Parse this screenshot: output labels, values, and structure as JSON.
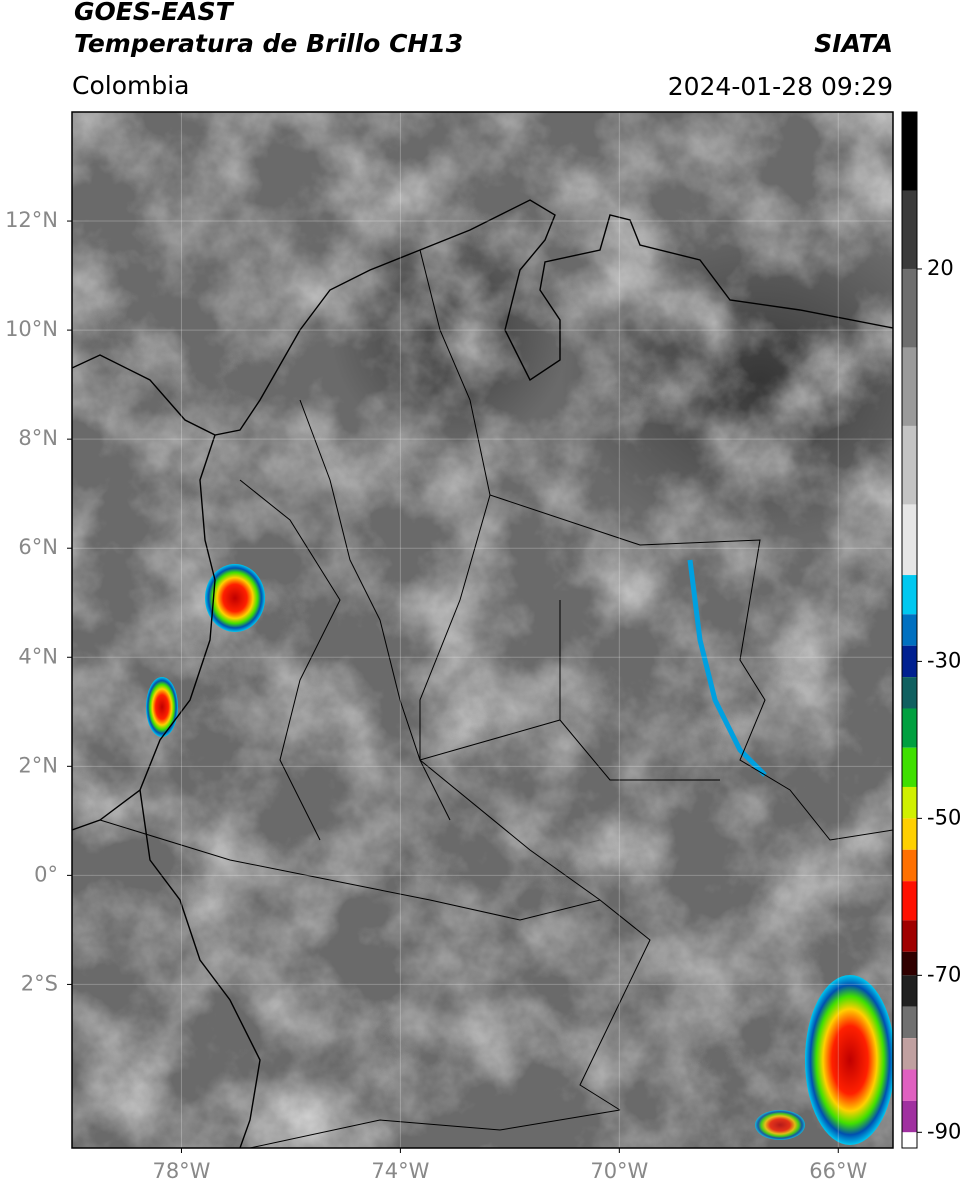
{
  "header": {
    "title": "GOES-EAST",
    "subtitle": "Temperatura de Brillo CH13",
    "source": "SIATA",
    "region": "Colombia",
    "timestamp": "2024-01-28 09:29"
  },
  "map": {
    "xlim": [
      -80,
      -65
    ],
    "ylim": [
      -5,
      14
    ],
    "xticks": [
      {
        "value": -78,
        "label": "78°W"
      },
      {
        "value": -74,
        "label": "74°W"
      },
      {
        "value": -70,
        "label": "70°W"
      },
      {
        "value": -66,
        "label": "66°W"
      }
    ],
    "yticks": [
      {
        "value": 12,
        "label": "12°N"
      },
      {
        "value": 10,
        "label": "10°N"
      },
      {
        "value": 8,
        "label": "8°N"
      },
      {
        "value": 6,
        "label": "6°N"
      },
      {
        "value": 4,
        "label": "4°N"
      },
      {
        "value": 2,
        "label": "2°N"
      },
      {
        "value": 0,
        "label": "0°"
      },
      {
        "value": -2,
        "label": "2°S"
      }
    ],
    "grid": true
  },
  "colorbar": {
    "lim": [
      -92,
      40
    ],
    "ticks": [
      20,
      -30,
      -50,
      -70,
      -90
    ],
    "stops": [
      {
        "value": 40,
        "color": "#000000"
      },
      {
        "value": 30,
        "color": "#3a3a3a"
      },
      {
        "value": 20,
        "color": "#6e6e6e"
      },
      {
        "value": 10,
        "color": "#9a9a9a"
      },
      {
        "value": 0,
        "color": "#c4c4c4"
      },
      {
        "value": -10,
        "color": "#e6e6e6"
      },
      {
        "value": -19,
        "color": "#00c8f0"
      },
      {
        "value": -24,
        "color": "#0070c0"
      },
      {
        "value": -28,
        "color": "#002090"
      },
      {
        "value": -32,
        "color": "#106060"
      },
      {
        "value": -36,
        "color": "#00a040"
      },
      {
        "value": -41,
        "color": "#40e000"
      },
      {
        "value": -46,
        "color": "#d0f000"
      },
      {
        "value": -50,
        "color": "#ffd000"
      },
      {
        "value": -54,
        "color": "#ff7000"
      },
      {
        "value": -58,
        "color": "#ff1000"
      },
      {
        "value": -63,
        "color": "#a00000"
      },
      {
        "value": -67,
        "color": "#300000"
      },
      {
        "value": -70,
        "color": "#202020"
      },
      {
        "value": -74,
        "color": "#707070"
      },
      {
        "value": -78,
        "color": "#c0a0a0"
      },
      {
        "value": -82,
        "color": "#e060c0"
      },
      {
        "value": -86,
        "color": "#a030a0"
      },
      {
        "value": -90,
        "color": "#ffffff"
      }
    ]
  }
}
